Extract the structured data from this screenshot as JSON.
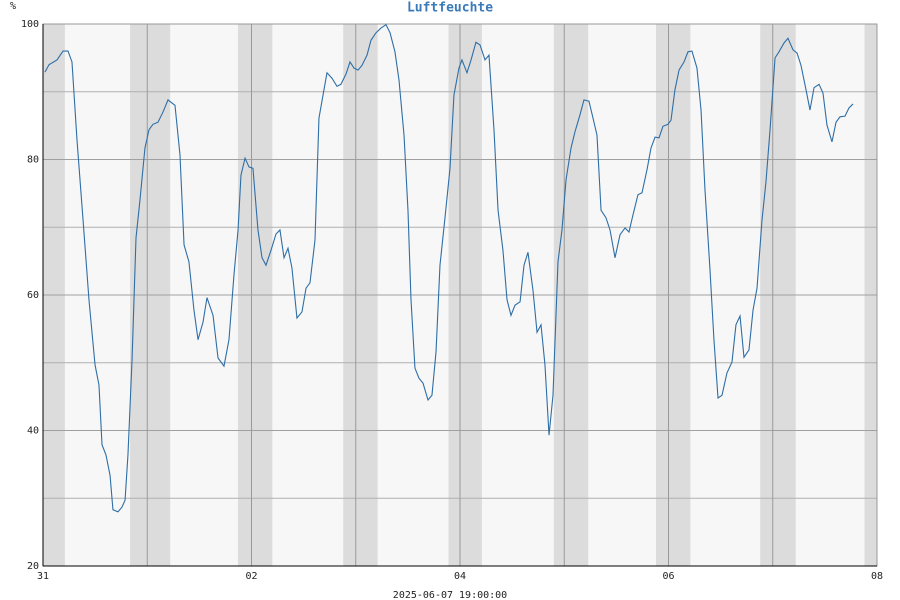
{
  "chart_data": {
    "type": "line",
    "title": "Luftfeuchte",
    "y_unit": "%",
    "footer": "2025-06-07 19:00:00",
    "xlim": [
      0,
      8
    ],
    "xticks": [
      {
        "value": 0,
        "label": "31"
      },
      {
        "value": 2,
        "label": "02"
      },
      {
        "value": 4,
        "label": "04"
      },
      {
        "value": 6,
        "label": "06"
      },
      {
        "value": 8,
        "label": "08"
      }
    ],
    "xminor": [
      1,
      3,
      5,
      7
    ],
    "ylim": [
      20,
      100
    ],
    "yticks": [
      20,
      40,
      60,
      80,
      100
    ],
    "yminor": [
      30,
      50,
      70,
      90
    ],
    "grid": true,
    "night_bands": [
      [
        0,
        0.21
      ],
      [
        0.835,
        1.22
      ],
      [
        1.87,
        2.2
      ],
      [
        2.88,
        3.21
      ],
      [
        3.89,
        4.21
      ],
      [
        4.9,
        5.23
      ],
      [
        5.88,
        6.21
      ],
      [
        6.88,
        7.22
      ],
      [
        7.88,
        8
      ]
    ],
    "x": [
      0.019,
      0.058,
      0.134,
      0.192,
      0.24,
      0.278,
      0.326,
      0.384,
      0.441,
      0.499,
      0.537,
      0.566,
      0.604,
      0.643,
      0.671,
      0.719,
      0.758,
      0.787,
      0.815,
      0.854,
      0.892,
      0.93,
      0.978,
      1.017,
      1.055,
      1.103,
      1.151,
      1.199,
      1.266,
      1.314,
      1.353,
      1.4,
      1.448,
      1.487,
      1.535,
      1.573,
      1.631,
      1.679,
      1.736,
      1.784,
      1.832,
      1.871,
      1.899,
      1.938,
      1.976,
      2.014,
      2.062,
      2.101,
      2.139,
      2.187,
      2.235,
      2.273,
      2.312,
      2.35,
      2.388,
      2.436,
      2.484,
      2.523,
      2.561,
      2.609,
      2.647,
      2.686,
      2.724,
      2.772,
      2.82,
      2.858,
      2.906,
      2.945,
      2.983,
      3.022,
      3.06,
      3.108,
      3.146,
      3.194,
      3.242,
      3.29,
      3.329,
      3.376,
      3.415,
      3.463,
      3.501,
      3.53,
      3.568,
      3.607,
      3.645,
      3.693,
      3.731,
      3.77,
      3.808,
      3.856,
      3.904,
      3.942,
      3.99,
      4.019,
      4.067,
      4.106,
      4.153,
      4.192,
      4.24,
      4.278,
      4.326,
      4.365,
      4.412,
      4.451,
      4.489,
      4.528,
      4.576,
      4.614,
      4.652,
      4.7,
      4.739,
      4.777,
      4.815,
      4.854,
      4.892,
      4.94,
      4.978,
      5.017,
      5.065,
      5.103,
      5.151,
      5.189,
      5.237,
      5.276,
      5.314,
      5.353,
      5.4,
      5.439,
      5.487,
      5.535,
      5.583,
      5.621,
      5.659,
      5.707,
      5.746,
      5.794,
      5.832,
      5.871,
      5.909,
      5.947,
      5.995,
      6.024,
      6.062,
      6.101,
      6.149,
      6.187,
      6.225,
      6.273,
      6.312,
      6.35,
      6.398,
      6.436,
      6.475,
      6.513,
      6.561,
      6.609,
      6.647,
      6.686,
      6.724,
      6.772,
      6.811,
      6.849,
      6.897,
      6.935,
      6.974,
      7.022,
      7.06,
      7.108,
      7.146,
      7.194,
      7.233,
      7.271,
      7.319,
      7.357,
      7.396,
      7.444,
      7.482,
      7.52,
      7.568,
      7.607,
      7.645,
      7.693,
      7.731,
      7.77
    ],
    "series": [
      {
        "name": "Luftfeuchte",
        "color": "#2e6ea6",
        "values": [
          92.9,
          94.0,
          94.7,
          96.0,
          96.0,
          94.4,
          82.9,
          71.1,
          59.3,
          49.7,
          46.7,
          37.9,
          36.4,
          33.4,
          28.3,
          28.0,
          28.7,
          29.7,
          36.4,
          50.4,
          68.4,
          74.0,
          81.7,
          84.4,
          85.2,
          85.5,
          87.0,
          88.8,
          88.0,
          80.7,
          67.4,
          64.9,
          57.8,
          53.4,
          56.0,
          59.6,
          57.0,
          50.7,
          49.5,
          53.4,
          63.0,
          69.6,
          77.7,
          80.2,
          78.9,
          78.7,
          69.6,
          65.5,
          64.4,
          66.6,
          69.0,
          69.6,
          65.5,
          66.9,
          64.0,
          56.6,
          57.5,
          61.0,
          61.8,
          68.1,
          86.1,
          89.5,
          92.8,
          92.0,
          90.8,
          91.1,
          92.6,
          94.4,
          93.5,
          93.2,
          93.9,
          95.4,
          97.6,
          98.7,
          99.4,
          99.9,
          98.7,
          95.9,
          91.7,
          83.6,
          72.5,
          59.3,
          49.2,
          47.7,
          47.0,
          44.5,
          45.2,
          51.6,
          64.4,
          71.4,
          78.7,
          89.5,
          93.5,
          94.7,
          92.8,
          94.7,
          97.3,
          96.9,
          94.7,
          95.4,
          84.4,
          72.5,
          66.6,
          59.3,
          57.0,
          58.5,
          59.0,
          64.4,
          66.3,
          60.7,
          54.5,
          55.6,
          49.7,
          39.3,
          45.2,
          64.9,
          69.6,
          77.0,
          81.7,
          84.1,
          86.6,
          88.8,
          88.6,
          86.1,
          83.6,
          72.5,
          71.4,
          69.6,
          65.5,
          68.9,
          69.9,
          69.3,
          71.8,
          74.8,
          75.1,
          78.5,
          81.7,
          83.3,
          83.2,
          84.9,
          85.2,
          85.8,
          90.3,
          93.2,
          94.4,
          95.9,
          96.0,
          93.5,
          87.3,
          75.5,
          63.7,
          53.4,
          44.8,
          45.2,
          48.5,
          50.1,
          55.6,
          56.9,
          50.8,
          51.9,
          57.8,
          61.0,
          71.1,
          76.7,
          84.4,
          95.0,
          95.9,
          97.2,
          97.9,
          96.2,
          95.7,
          93.9,
          90.3,
          87.3,
          90.6,
          91.1,
          89.8,
          85.1,
          82.6,
          85.5,
          86.3,
          86.4,
          87.6,
          88.2
        ]
      }
    ]
  }
}
